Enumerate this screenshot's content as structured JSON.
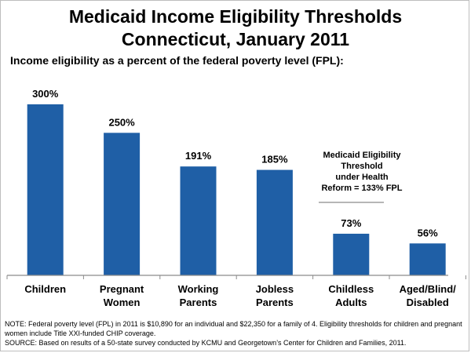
{
  "title_line1": "Medicaid Income Eligibility Thresholds",
  "title_line2": "Connecticut, January 2011",
  "subtitle": "Income eligibility as a percent of the federal poverty level (FPL):",
  "colors": {
    "bar": "#1f5fa6",
    "axis": "#8c8c8c"
  },
  "annotation": {
    "lines": [
      "Medicaid Eligibility",
      "Threshold",
      "under Health",
      "Reform = 133% FPL"
    ],
    "value": 133
  },
  "chart_data": {
    "type": "bar",
    "categories": [
      [
        "Children"
      ],
      [
        "Pregnant",
        "Women"
      ],
      [
        "Working",
        "Parents"
      ],
      [
        "Jobless",
        "Parents"
      ],
      [
        "Childless",
        "Adults"
      ],
      [
        "Aged/Blind/",
        "Disabled"
      ]
    ],
    "values": [
      300,
      250,
      191,
      185,
      73,
      56
    ],
    "data_labels": [
      "300%",
      "250%",
      "191%",
      "185%",
      "73%",
      "56%"
    ],
    "ylim": [
      0,
      300
    ],
    "grid": false,
    "legend": "none"
  },
  "notes": {
    "note": "NOTE: Federal poverty level (FPL) in 2011 is $10,890 for an individual and  $22,350 for a family of 4. Eligibility thresholds for children and pregnant women include Title XXI-funded CHIP coverage.",
    "source": "SOURCE: Based on results of a 50-state survey conducted by KCMU and Georgetown’s Center for Children and Families, 2011."
  }
}
